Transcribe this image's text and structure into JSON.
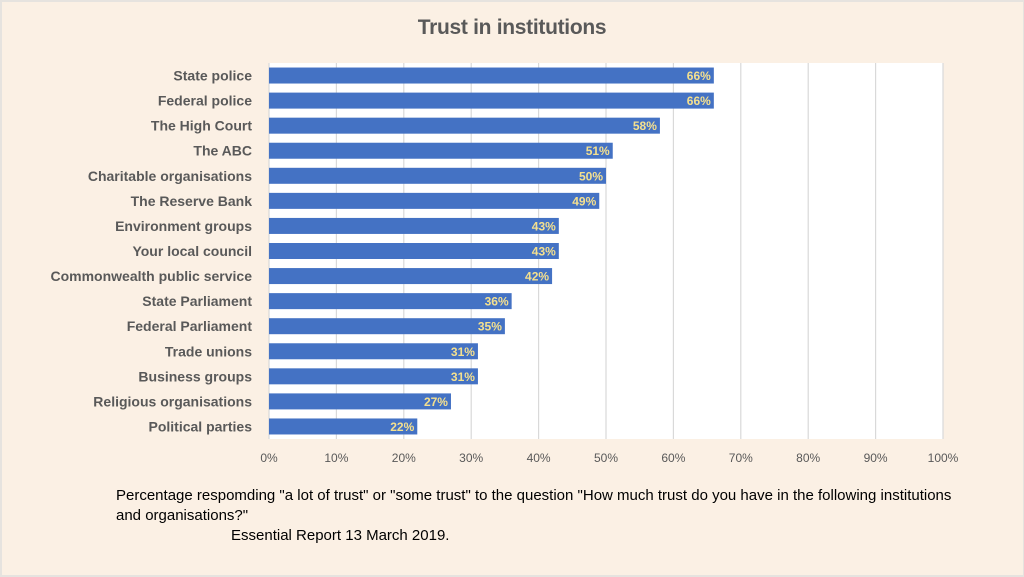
{
  "chart_data": {
    "type": "bar",
    "orientation": "horizontal",
    "title": "Trust in institutions",
    "categories": [
      "State police",
      "Federal police",
      "The High Court",
      "The ABC",
      "Charitable organisations",
      "The Reserve Bank",
      "Environment groups",
      "Your local council",
      "Commonwealth public service",
      "State Parliament",
      "Federal Parliament",
      "Trade unions",
      "Business groups",
      "Religious organisations",
      "Political parties"
    ],
    "values": [
      66,
      66,
      58,
      51,
      50,
      49,
      43,
      43,
      42,
      36,
      35,
      31,
      31,
      27,
      22
    ],
    "value_labels": [
      "66%",
      "66%",
      "58%",
      "51%",
      "50%",
      "49%",
      "43%",
      "43%",
      "42%",
      "36%",
      "35%",
      "31%",
      "31%",
      "27%",
      "22%"
    ],
    "xlabel": "",
    "ylabel": "",
    "xlim": [
      0,
      100
    ],
    "x_ticks": [
      0,
      10,
      20,
      30,
      40,
      50,
      60,
      70,
      80,
      90,
      100
    ],
    "x_tick_labels": [
      "0%",
      "10%",
      "20%",
      "30%",
      "40%",
      "50%",
      "60%",
      "70%",
      "80%",
      "90%",
      "100%"
    ],
    "grid": "vertical",
    "legend": "none",
    "bar_color": "#4472c4",
    "data_label_color": "#f4e08f"
  },
  "caption": "Percentage respomding \"a lot of trust\" or \"some trust\" to the question \"How much trust do you have in the following institutions and organisations?\"",
  "source": "Essential Report 13 March 2019."
}
